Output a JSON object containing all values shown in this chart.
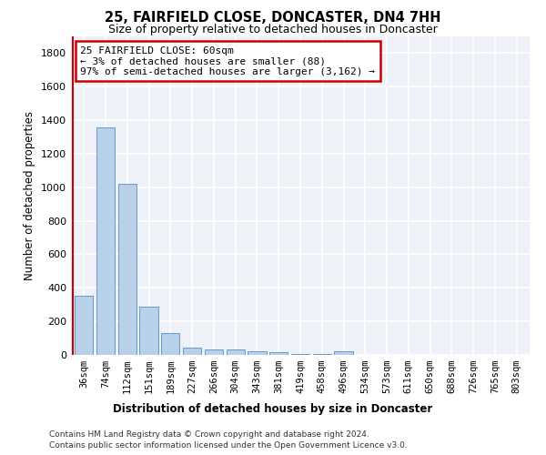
{
  "title": "25, FAIRFIELD CLOSE, DONCASTER, DN4 7HH",
  "subtitle": "Size of property relative to detached houses in Doncaster",
  "xlabel": "Distribution of detached houses by size in Doncaster",
  "ylabel": "Number of detached properties",
  "bar_color": "#b8d0e8",
  "bar_edge_color": "#6699cc",
  "categories": [
    "36sqm",
    "74sqm",
    "112sqm",
    "151sqm",
    "189sqm",
    "227sqm",
    "266sqm",
    "304sqm",
    "343sqm",
    "381sqm",
    "419sqm",
    "458sqm",
    "496sqm",
    "534sqm",
    "573sqm",
    "611sqm",
    "650sqm",
    "688sqm",
    "726sqm",
    "765sqm",
    "803sqm"
  ],
  "values": [
    355,
    1355,
    1020,
    290,
    128,
    42,
    35,
    30,
    22,
    15,
    5,
    3,
    20,
    2,
    1,
    1,
    1,
    1,
    1,
    1,
    1
  ],
  "ylim": [
    0,
    1900
  ],
  "yticks": [
    0,
    200,
    400,
    600,
    800,
    1000,
    1200,
    1400,
    1600,
    1800
  ],
  "annotation_text": "25 FAIRFIELD CLOSE: 60sqm\n← 3% of detached houses are smaller (88)\n97% of semi-detached houses are larger (3,162) →",
  "annotation_box_color": "#cc0000",
  "background_color": "#eef2f8",
  "grid_color": "#ffffff",
  "footer_line1": "Contains HM Land Registry data © Crown copyright and database right 2024.",
  "footer_line2": "Contains public sector information licensed under the Open Government Licence v3.0."
}
